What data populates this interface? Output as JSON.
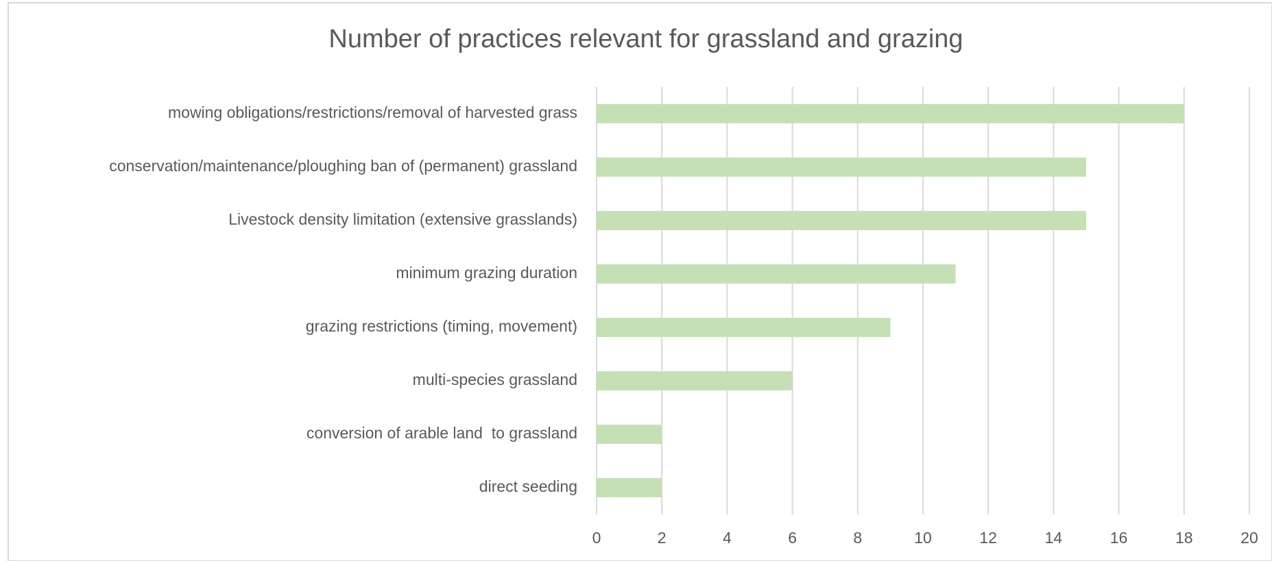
{
  "chart_data": {
    "type": "bar",
    "orientation": "horizontal",
    "title": "Number of practices relevant for grassland and grazing",
    "categories": [
      "mowing obligations/restrictions/removal of harvested grass",
      "conservation/maintenance/ploughing ban of (permanent) grassland",
      "Livestock density limitation (extensive grasslands)",
      "minimum grazing duration",
      "grazing restrictions (timing, movement)",
      "multi-species grassland",
      "conversion of arable land  to grassland",
      "direct seeding"
    ],
    "values": [
      18,
      15,
      15,
      11,
      9,
      6,
      2,
      2
    ],
    "color": "#c5e0b4",
    "xlim": [
      0,
      20
    ],
    "xticks": [
      0,
      2,
      4,
      6,
      8,
      10,
      12,
      14,
      16,
      18,
      20
    ],
    "grid": true
  }
}
